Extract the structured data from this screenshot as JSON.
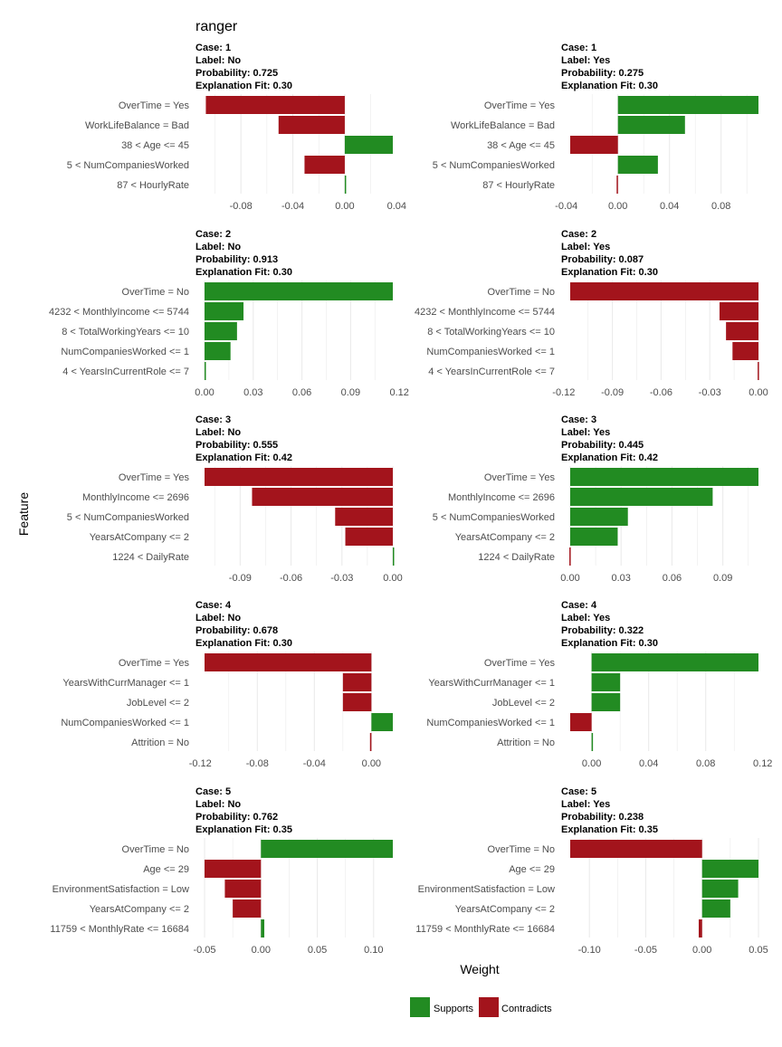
{
  "figure": {
    "title": "ranger",
    "ylabel": "Feature",
    "xlabel": "Weight"
  },
  "legend": {
    "items": [
      {
        "label": "Supports",
        "color": "#228B22"
      },
      {
        "label": "Contradicts",
        "color": "#A3141C"
      }
    ]
  },
  "colors": {
    "supports": "#228B22",
    "contradicts": "#A3141C",
    "grid": "#ebebeb"
  },
  "chart_data": [
    {
      "type": "bar",
      "orientation": "horizontal",
      "case": "1",
      "label": "No",
      "probability": "0.725",
      "fit": "0.30",
      "header": [
        "Case: 1",
        "Label: No",
        "Probability: 0.725",
        "Explanation Fit: 0.30"
      ],
      "features": [
        "OverTime = Yes",
        "WorkLifeBalance = Bad",
        "38 < Age <= 45",
        "5 < NumCompaniesWorked",
        "87 < HourlyRate"
      ],
      "values": [
        -0.107,
        -0.051,
        0.037,
        -0.031,
        0.001
      ],
      "xlim": [
        -0.108,
        0.037
      ],
      "xticks": [
        -0.08,
        -0.04,
        0.0,
        0.04
      ],
      "xticklabels": [
        "-0.08",
        "-0.04",
        "0.00",
        "0.04"
      ]
    },
    {
      "type": "bar",
      "orientation": "horizontal",
      "case": "1",
      "label": "Yes",
      "probability": "0.275",
      "fit": "0.30",
      "header": [
        "Case: 1",
        "Label: Yes",
        "Probability: 0.275",
        "Explanation Fit: 0.30"
      ],
      "features": [
        "OverTime = Yes",
        "WorkLifeBalance = Bad",
        "38 < Age <= 45",
        "5 < NumCompaniesWorked",
        "87 < HourlyRate"
      ],
      "values": [
        0.109,
        0.052,
        -0.037,
        0.031,
        -0.001
      ],
      "xlim": [
        -0.037,
        0.109
      ],
      "xticks": [
        -0.04,
        0.0,
        0.04,
        0.08
      ],
      "xticklabels": [
        "-0.04",
        "0.00",
        "0.04",
        "0.08"
      ]
    },
    {
      "type": "bar",
      "orientation": "horizontal",
      "case": "2",
      "label": "No",
      "probability": "0.913",
      "fit": "0.30",
      "header": [
        "Case: 2",
        "Label: No",
        "Probability: 0.913",
        "Explanation Fit: 0.30"
      ],
      "features": [
        "OverTime = No",
        "4232 < MonthlyIncome <= 5744",
        "8 < TotalWorkingYears <= 10",
        "NumCompaniesWorked <= 1",
        "4 < YearsInCurrentRole <= 7"
      ],
      "values": [
        0.116,
        0.024,
        0.02,
        0.016,
        0.0005
      ],
      "xlim": [
        0.0,
        0.116
      ],
      "xticks": [
        0.0,
        0.03,
        0.06,
        0.09,
        0.12
      ],
      "xticklabels": [
        "0.00",
        "0.03",
        "0.06",
        "0.09",
        "0.12"
      ]
    },
    {
      "type": "bar",
      "orientation": "horizontal",
      "case": "2",
      "label": "Yes",
      "probability": "0.087",
      "fit": "0.30",
      "header": [
        "Case: 2",
        "Label: Yes",
        "Probability: 0.087",
        "Explanation Fit: 0.30"
      ],
      "features": [
        "OverTime = No",
        "4232 < MonthlyIncome <= 5744",
        "8 < TotalWorkingYears <= 10",
        "NumCompaniesWorked <= 1",
        "4 < YearsInCurrentRole <= 7"
      ],
      "values": [
        -0.116,
        -0.024,
        -0.02,
        -0.016,
        -0.0005
      ],
      "xlim": [
        -0.116,
        0.0
      ],
      "xticks": [
        -0.12,
        -0.09,
        -0.06,
        -0.03,
        0.0
      ],
      "xticklabels": [
        "-0.12",
        "-0.09",
        "-0.06",
        "-0.03",
        "0.00"
      ]
    },
    {
      "type": "bar",
      "orientation": "horizontal",
      "case": "3",
      "label": "No",
      "probability": "0.555",
      "fit": "0.42",
      "header": [
        "Case: 3",
        "Label: No",
        "Probability: 0.555",
        "Explanation Fit: 0.42"
      ],
      "features": [
        "OverTime = Yes",
        "MonthlyIncome <= 2696",
        "5 < NumCompaniesWorked",
        "YearsAtCompany <= 2",
        "1224 < DailyRate"
      ],
      "values": [
        -0.111,
        -0.083,
        -0.034,
        -0.028,
        0.0005
      ],
      "xlim": [
        -0.111,
        0.0
      ],
      "xticks": [
        -0.09,
        -0.06,
        -0.03,
        0.0
      ],
      "xticklabels": [
        "-0.09",
        "-0.06",
        "-0.03",
        "0.00"
      ]
    },
    {
      "type": "bar",
      "orientation": "horizontal",
      "case": "3",
      "label": "Yes",
      "probability": "0.445",
      "fit": "0.42",
      "header": [
        "Case: 3",
        "Label: Yes",
        "Probability: 0.445",
        "Explanation Fit: 0.42"
      ],
      "features": [
        "OverTime = Yes",
        "MonthlyIncome <= 2696",
        "5 < NumCompaniesWorked",
        "YearsAtCompany <= 2",
        "1224 < DailyRate"
      ],
      "values": [
        0.111,
        0.084,
        0.034,
        0.028,
        -0.0005
      ],
      "xlim": [
        0.0,
        0.111
      ],
      "xticks": [
        0.0,
        0.03,
        0.06,
        0.09
      ],
      "xticklabels": [
        "0.00",
        "0.03",
        "0.06",
        "0.09"
      ]
    },
    {
      "type": "bar",
      "orientation": "horizontal",
      "case": "4",
      "label": "No",
      "probability": "0.678",
      "fit": "0.30",
      "header": [
        "Case: 4",
        "Label: No",
        "Probability: 0.678",
        "Explanation Fit: 0.30"
      ],
      "features": [
        "OverTime = Yes",
        "YearsWithCurrManager <= 1",
        "JobLevel <= 2",
        "NumCompaniesWorked <= 1",
        "Attrition = No"
      ],
      "values": [
        -0.117,
        -0.02,
        -0.02,
        0.015,
        -0.001
      ],
      "xlim": [
        -0.117,
        0.015
      ],
      "xticks": [
        -0.12,
        -0.08,
        -0.04,
        0.0
      ],
      "xticklabels": [
        "-0.12",
        "-0.08",
        "-0.04",
        "0.00"
      ]
    },
    {
      "type": "bar",
      "orientation": "horizontal",
      "case": "4",
      "label": "Yes",
      "probability": "0.322",
      "fit": "0.30",
      "header": [
        "Case: 4",
        "Label: Yes",
        "Probability: 0.322",
        "Explanation Fit: 0.30"
      ],
      "features": [
        "OverTime = Yes",
        "YearsWithCurrManager <= 1",
        "JobLevel <= 2",
        "NumCompaniesWorked <= 1",
        "Attrition = No"
      ],
      "values": [
        0.117,
        0.02,
        0.02,
        -0.015,
        0.0005
      ],
      "xlim": [
        -0.015,
        0.117
      ],
      "xticks": [
        0.0,
        0.04,
        0.08,
        0.12
      ],
      "xticklabels": [
        "0.00",
        "0.04",
        "0.08",
        "0.12"
      ]
    },
    {
      "type": "bar",
      "orientation": "horizontal",
      "case": "5",
      "label": "No",
      "probability": "0.762",
      "fit": "0.35",
      "header": [
        "Case: 5",
        "Label: No",
        "Probability: 0.762",
        "Explanation Fit: 0.35"
      ],
      "features": [
        "OverTime = No",
        "Age <= 29",
        "EnvironmentSatisfaction = Low",
        "YearsAtCompany <= 2",
        "11759 < MonthlyRate <= 16684"
      ],
      "values": [
        0.117,
        -0.05,
        -0.032,
        -0.025,
        0.003
      ],
      "xlim": [
        -0.05,
        0.117
      ],
      "xticks": [
        -0.05,
        0.0,
        0.05,
        0.1
      ],
      "xticklabels": [
        "-0.05",
        "0.00",
        "0.05",
        "0.10"
      ]
    },
    {
      "type": "bar",
      "orientation": "horizontal",
      "case": "5",
      "label": "Yes",
      "probability": "0.238",
      "fit": "0.35",
      "header": [
        "Case: 5",
        "Label: Yes",
        "Probability: 0.238",
        "Explanation Fit: 0.35"
      ],
      "features": [
        "OverTime = No",
        "Age <= 29",
        "EnvironmentSatisfaction = Low",
        "YearsAtCompany <= 2",
        "11759 < MonthlyRate <= 16684"
      ],
      "values": [
        -0.117,
        0.05,
        0.032,
        0.025,
        -0.003
      ],
      "xlim": [
        -0.117,
        0.05
      ],
      "xticks": [
        -0.1,
        -0.05,
        0.0,
        0.05
      ],
      "xticklabels": [
        "-0.10",
        "-0.05",
        "0.00",
        "0.05"
      ]
    }
  ]
}
